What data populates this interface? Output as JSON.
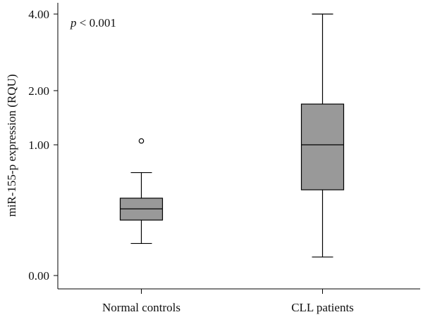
{
  "chart_data": {
    "type": "boxplot",
    "title": "",
    "xlabel": "",
    "ylabel": "miR-155-p expression (RQU)",
    "yscale": "sqrt",
    "ylim": [
      0,
      4
    ],
    "yticks": [
      {
        "value": 0,
        "label": "0.00"
      },
      {
        "value": 1,
        "label": "1.00"
      },
      {
        "value": 2,
        "label": "2.00"
      },
      {
        "value": 4,
        "label": "4.00"
      }
    ],
    "annotation": {
      "italic": "p",
      "text": " < 0.001"
    },
    "box_color": "#999999",
    "categories": [
      "Normal controls",
      "CLL patients"
    ],
    "series": [
      {
        "name": "Normal controls",
        "whisker_low": 0.06,
        "q1": 0.18,
        "median": 0.26,
        "q3": 0.35,
        "whisker_high": 0.62,
        "outliers": [
          1.06
        ]
      },
      {
        "name": "CLL patients",
        "whisker_low": 0.02,
        "q1": 0.43,
        "median": 1.0,
        "q3": 1.72,
        "whisker_high": 4.0,
        "outliers": []
      }
    ]
  }
}
